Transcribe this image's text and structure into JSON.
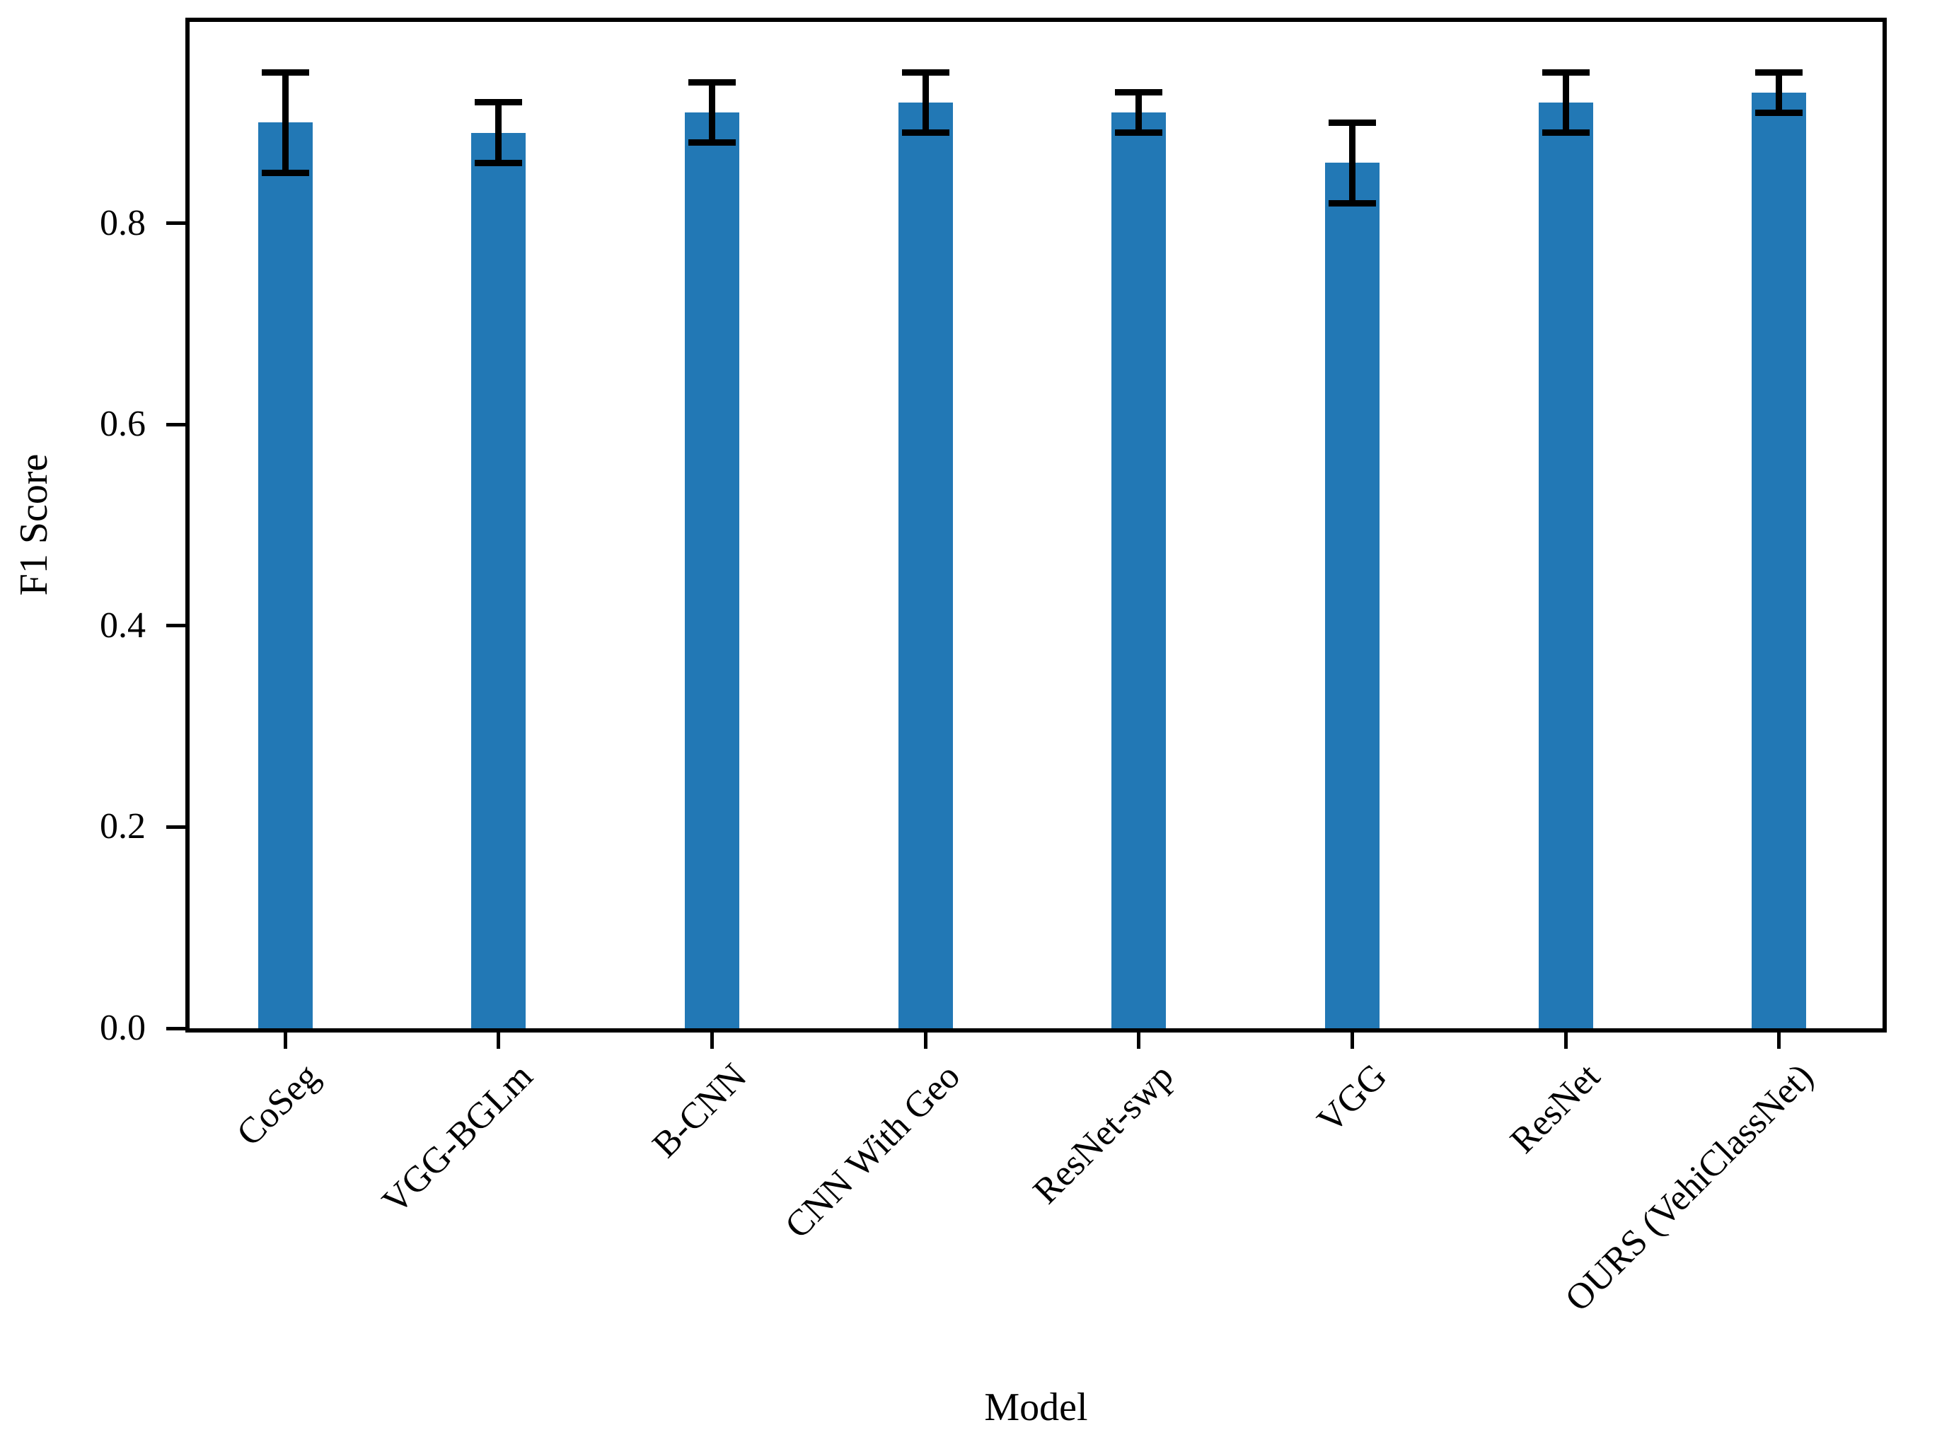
{
  "chart_data": {
    "type": "bar",
    "title": "",
    "xlabel": "Model",
    "ylabel": "F1 Score",
    "categories": [
      "CoSeg",
      "VGG-BGLm",
      "B-CNN",
      "CNN With Geo",
      "ResNet-swp",
      "VGG",
      "ResNet",
      "OURS (VehiClassNet)"
    ],
    "series": [
      {
        "name": "F1 Score",
        "values": [
          0.9,
          0.89,
          0.91,
          0.92,
          0.91,
          0.86,
          0.92,
          0.93
        ],
        "errors": [
          0.05,
          0.03,
          0.03,
          0.03,
          0.02,
          0.04,
          0.03,
          0.02
        ]
      }
    ],
    "y_ticks": [
      "0.0",
      "0.2",
      "0.4",
      "0.6",
      "0.8"
    ],
    "y_tick_values": [
      0.0,
      0.2,
      0.4,
      0.6,
      0.8
    ],
    "ylim": [
      0.0,
      1.0
    ],
    "grid": "off",
    "legend": "none",
    "x_tick_rotation": 45,
    "bar_color": "#2278b5",
    "error_color": "#000000",
    "axis_color": "#000000"
  }
}
